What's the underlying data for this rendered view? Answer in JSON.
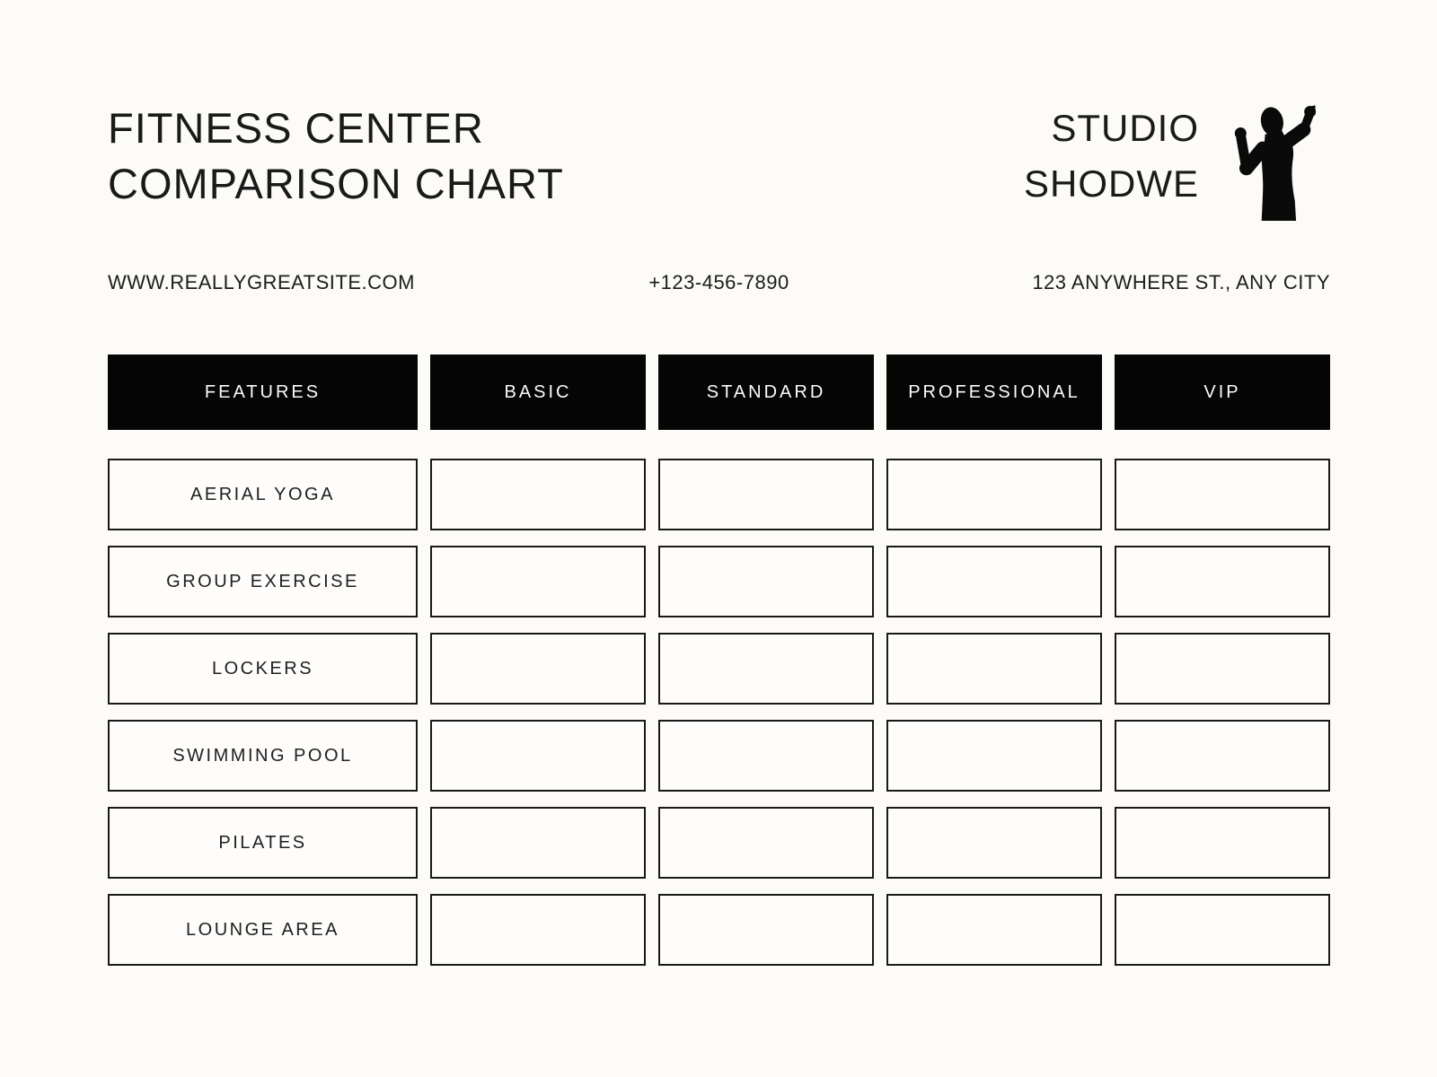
{
  "page": {
    "background_color": "#fcfbf8",
    "accent_color": "#050505",
    "text_color": "#1a1a1a"
  },
  "header": {
    "title_line1": "FITNESS CENTER",
    "title_line2": "COMPARISON CHART",
    "brand_line1": "STUDIO",
    "brand_line2": "SHODWE",
    "logo_icon": "bodybuilder-flex-icon"
  },
  "contact": {
    "website": "WWW.REALLYGREATSITE.COM",
    "phone": "+123-456-7890",
    "address": "123 ANYWHERE ST., ANY CITY"
  },
  "table": {
    "columns": [
      "FEATURES",
      "BASIC",
      "STANDARD",
      "PROFESSIONAL",
      "VIP"
    ],
    "rows": [
      {
        "feature": "AERIAL YOGA",
        "values": [
          "",
          "",
          "",
          ""
        ]
      },
      {
        "feature": "GROUP EXERCISE",
        "values": [
          "",
          "",
          "",
          ""
        ]
      },
      {
        "feature": "LOCKERS",
        "values": [
          "",
          "",
          "",
          ""
        ]
      },
      {
        "feature": "SWIMMING POOL",
        "values": [
          "",
          "",
          "",
          ""
        ]
      },
      {
        "feature": "PILATES",
        "values": [
          "",
          "",
          "",
          ""
        ]
      },
      {
        "feature": "LOUNGE AREA",
        "values": [
          "",
          "",
          "",
          ""
        ]
      }
    ]
  }
}
